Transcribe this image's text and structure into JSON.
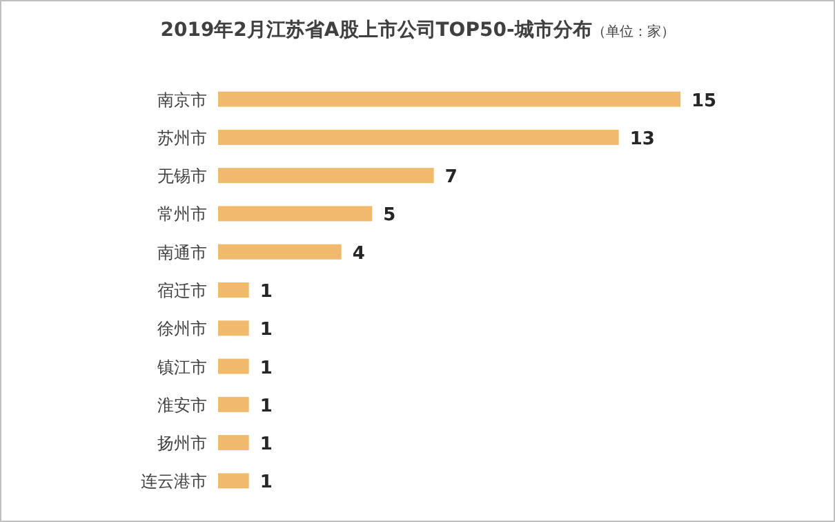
{
  "chart_data": {
    "type": "bar",
    "orientation": "horizontal",
    "title": "2019年2月江苏省A股上市公司TOP50-城市分布",
    "subtitle": "（单位：家）",
    "categories": [
      "南京市",
      "苏州市",
      "无锡市",
      "常州市",
      "南通市",
      "宿迁市",
      "徐州市",
      "镇江市",
      "淮安市",
      "扬州市",
      "连云港市"
    ],
    "values": [
      15,
      13,
      7,
      5,
      4,
      1,
      1,
      1,
      1,
      1,
      1
    ],
    "color": "#f0b96b",
    "data_labels": true
  }
}
